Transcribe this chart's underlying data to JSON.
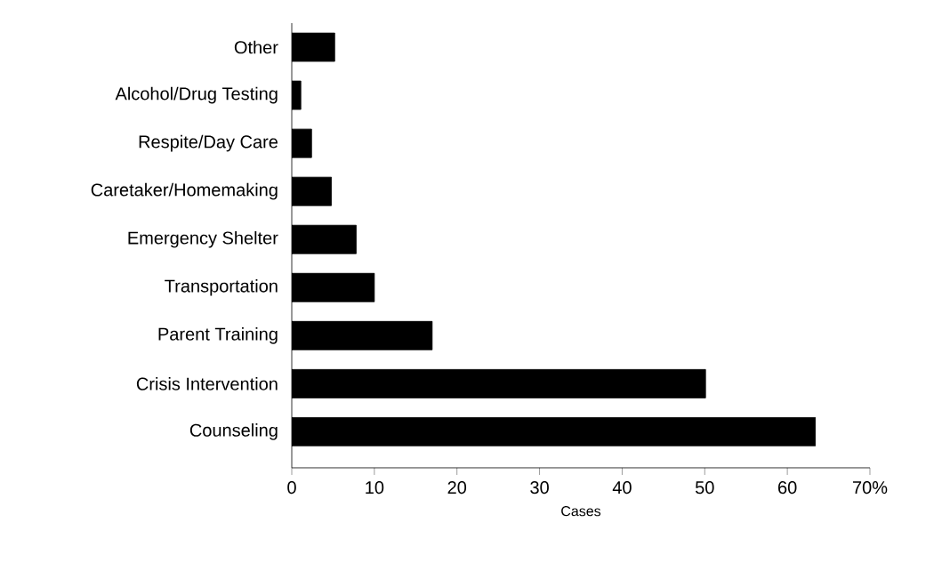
{
  "chart_data": {
    "type": "bar",
    "orientation": "horizontal",
    "xlabel": "Cases",
    "categories": [
      "Other",
      "Alcohol/Drug Testing",
      "Respite/Day Care",
      "Caretaker/Homemaking",
      "Emergency Shelter",
      "Transportation",
      "Parent Training",
      "Crisis Intervention",
      "Counseling"
    ],
    "values": [
      5.2,
      1.1,
      2.4,
      4.8,
      7.8,
      10,
      17,
      50.1,
      63.4
    ],
    "color": "#000000",
    "xlim": [
      0,
      70
    ],
    "xticks": [
      0,
      10,
      20,
      30,
      40,
      50,
      60,
      {
        "value": 70,
        "label": "70%"
      }
    ]
  }
}
